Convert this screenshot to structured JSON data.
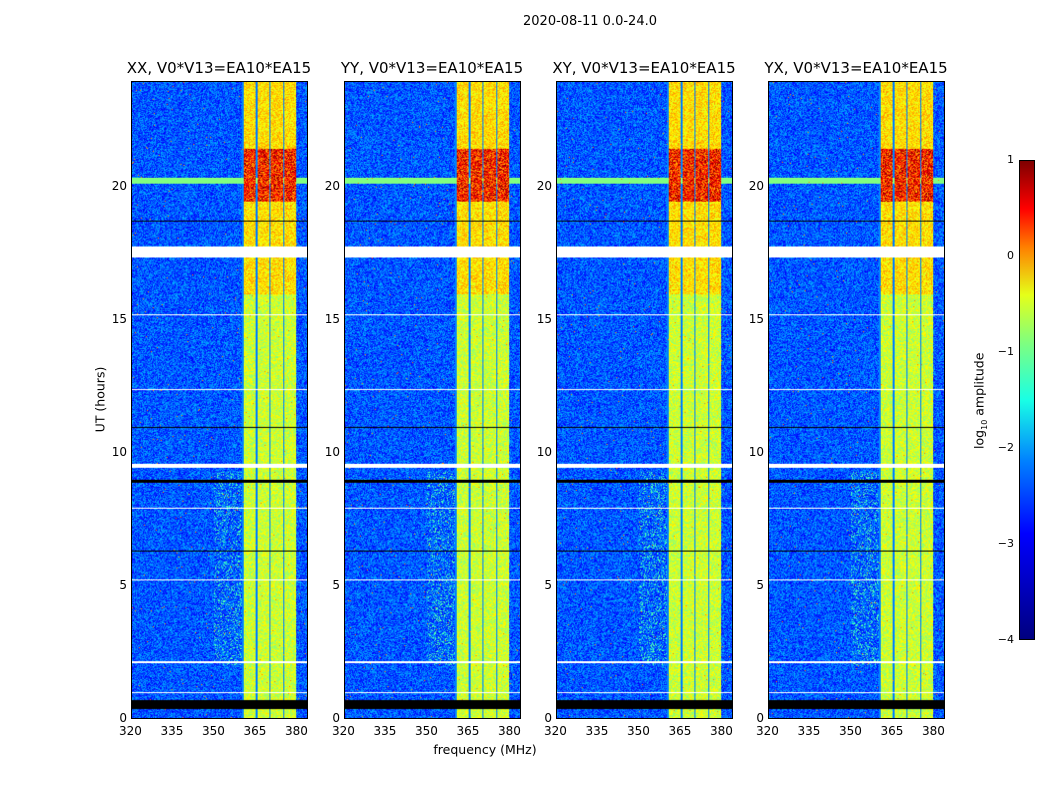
{
  "chart_data": {
    "type": "heatmap",
    "title": "2020-08-11 0.0-24.0",
    "xlabel": "frequency (MHz)",
    "ylabel": "UT (hours)",
    "xlim": [
      320,
      384
    ],
    "ylim": [
      0,
      24
    ],
    "xticks": [
      "320",
      "335",
      "350",
      "365",
      "380"
    ],
    "yticks": [
      "0",
      "5",
      "10",
      "15",
      "20"
    ],
    "panels": [
      {
        "title": "XX, V0*V13=EA10*EA15"
      },
      {
        "title": "YY, V0*V13=EA10*EA15"
      },
      {
        "title": "XY, V0*V13=EA10*EA15"
      },
      {
        "title": "YX, V0*V13=EA10*EA15"
      }
    ],
    "bright_band_mhz": [
      360,
      380
    ],
    "strong_emission_hours": [
      19.5,
      21.5
    ],
    "flagged_white_hours": [
      [
        17.4,
        17.8
      ],
      [
        9.45,
        9.6
      ],
      [
        2.1,
        2.15
      ],
      [
        0.95,
        1.0
      ],
      [
        12.4,
        12.45
      ],
      [
        15.2,
        15.25
      ],
      [
        7.9,
        7.95
      ],
      [
        5.2,
        5.25
      ]
    ],
    "flagged_black_hours": [
      [
        0.35,
        0.7
      ],
      [
        8.9,
        9.0
      ],
      [
        6.3,
        6.35
      ],
      [
        10.95,
        11.0
      ],
      [
        18.75,
        18.8
      ]
    ],
    "colorbar": {
      "label": "log10 amplitude",
      "label_main": "log",
      "label_sub": "10",
      "label_rest": " amplitude",
      "range": [
        -4,
        1
      ],
      "ticks": [
        "1",
        "0",
        "−1",
        "−2",
        "−3",
        "−4"
      ],
      "colormap": "jet"
    }
  }
}
